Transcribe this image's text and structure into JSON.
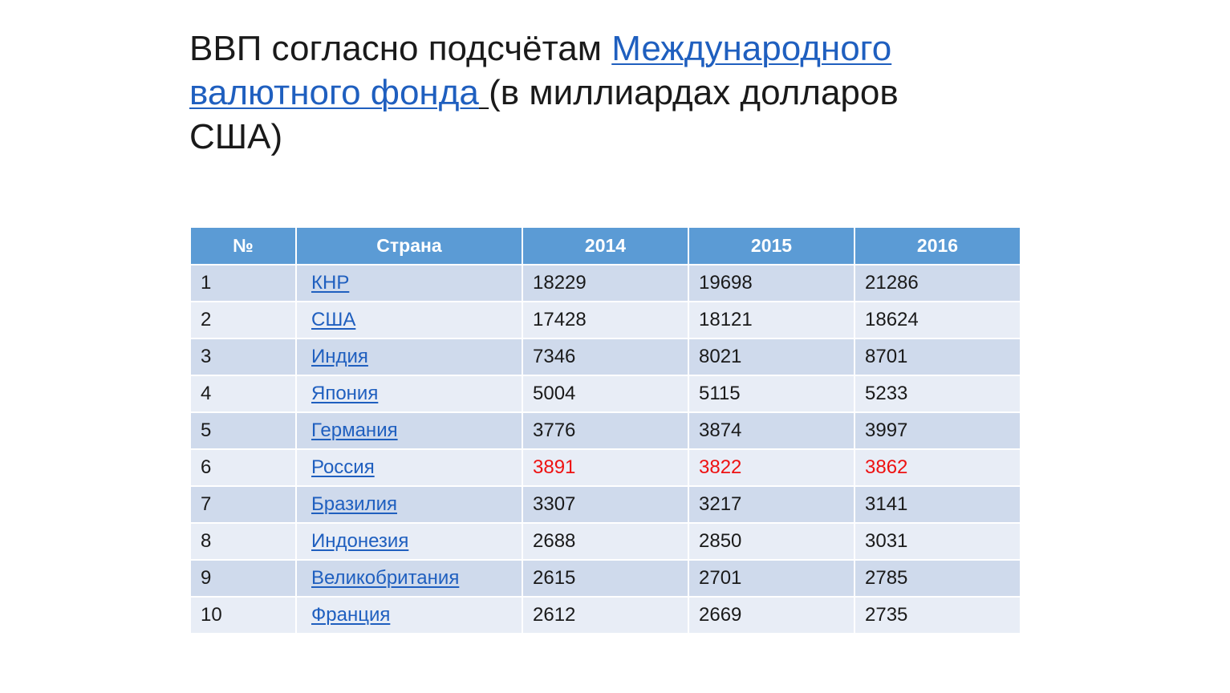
{
  "title": {
    "prefix": "ВВП согласно подсчётам ",
    "link_text": "Международного валютного фонда",
    "link_trailing_space": " ",
    "suffix": "(в миллиардах долларов США)"
  },
  "table": {
    "headers": [
      "№",
      "Страна",
      "2014",
      "2015",
      "2016"
    ],
    "rows": [
      {
        "num": "1",
        "country": "КНР",
        "y2014": "18229",
        "y2015": "19698",
        "y2016": "21286"
      },
      {
        "num": "2",
        "country": "США",
        "y2014": "17428",
        "y2015": "18121",
        "y2016": "18624"
      },
      {
        "num": "3",
        "country": "Индия",
        "y2014": "7346",
        "y2015": "8021",
        "y2016": "8701"
      },
      {
        "num": "4",
        "country": "Япония",
        "y2014": "5004",
        "y2015": "5115",
        "y2016": "5233"
      },
      {
        "num": "5",
        "country": "Германия",
        "y2014": "3776",
        "y2015": "3874",
        "y2016": "3997"
      },
      {
        "num": "6",
        "country": "Россия",
        "y2014": "3891",
        "y2015": "3822",
        "y2016": "3862",
        "highlight": true
      },
      {
        "num": "7",
        "country": "Бразилия",
        "y2014": "3307",
        "y2015": "3217",
        "y2016": "3141"
      },
      {
        "num": "8",
        "country": "Индонезия",
        "y2014": "2688",
        "y2015": "2850",
        "y2016": "3031"
      },
      {
        "num": "9",
        "country": "Великобритания",
        "y2014": "2615",
        "y2015": "2701",
        "y2016": "2785"
      },
      {
        "num": "10",
        "country": "Франция",
        "y2014": "2612",
        "y2015": "2669",
        "y2016": "2735"
      }
    ]
  },
  "colors": {
    "header_bg": "#5b9bd5",
    "row_odd_bg": "#cfdaec",
    "row_even_bg": "#e8edf6",
    "link": "#1f5fbf",
    "highlight_text": "#ee1111"
  }
}
